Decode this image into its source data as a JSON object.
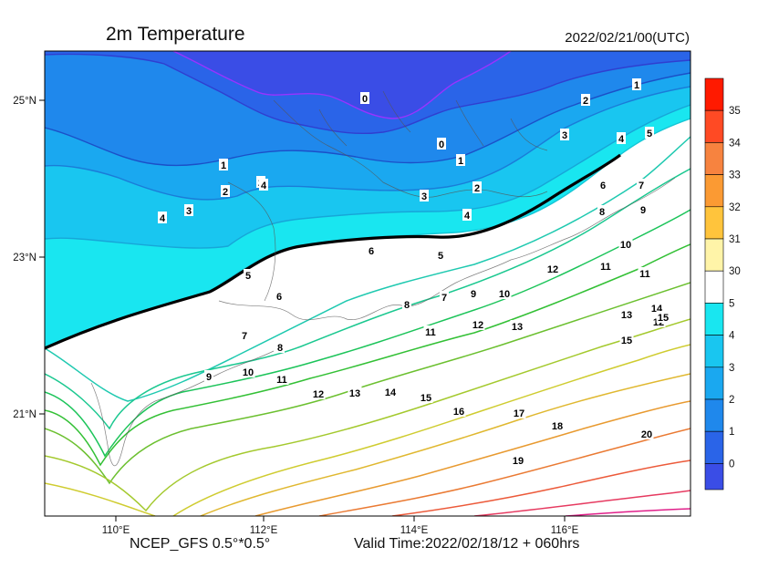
{
  "header": {
    "title": "2m Temperature",
    "init_time": "2022/02/21/00(UTC)"
  },
  "footer": {
    "model": "NCEP_GFS 0.5°*0.5°",
    "valid_time": "Valid Time:2022/02/18/12 + 060hrs"
  },
  "axes": {
    "lat_ticks": [
      "25°N",
      "23°N",
      "21°N"
    ],
    "lon_ticks": [
      "110°E",
      "112°E",
      "114°E",
      "116°E"
    ]
  },
  "legend": {
    "levels": [
      {
        "label": "35",
        "color": "#ff1a00"
      },
      {
        "label": "34",
        "color": "#ff4a24"
      },
      {
        "label": "33",
        "color": "#f7833f"
      },
      {
        "label": "32",
        "color": "#fb9a33"
      },
      {
        "label": "31",
        "color": "#ffc43c"
      },
      {
        "label": "30",
        "color": "#fff4a8"
      },
      {
        "label": "5",
        "color": "#ffffff"
      },
      {
        "label": "4",
        "color": "#19e6f0"
      },
      {
        "label": "3",
        "color": "#19c6f0"
      },
      {
        "label": "2",
        "color": "#1aa8f0"
      },
      {
        "label": "1",
        "color": "#1f88ec"
      },
      {
        "label": "0",
        "color": "#2a64e8"
      }
    ],
    "bottom_color": "#3a4de6"
  },
  "contour_labels": [
    "0",
    "0",
    "1",
    "1",
    "1",
    "2",
    "2",
    "2",
    "2",
    "3",
    "3",
    "3",
    "4",
    "4",
    "4",
    "4",
    "5",
    "5",
    "5",
    "6",
    "6",
    "6",
    "7",
    "7",
    "7",
    "8",
    "8",
    "8",
    "9",
    "9",
    "9",
    "10",
    "10",
    "10",
    "11",
    "11",
    "11",
    "11",
    "12",
    "12",
    "12",
    "12",
    "13",
    "13",
    "13",
    "14",
    "14",
    "15",
    "15",
    "15",
    "16",
    "17",
    "18",
    "19",
    "20"
  ]
}
